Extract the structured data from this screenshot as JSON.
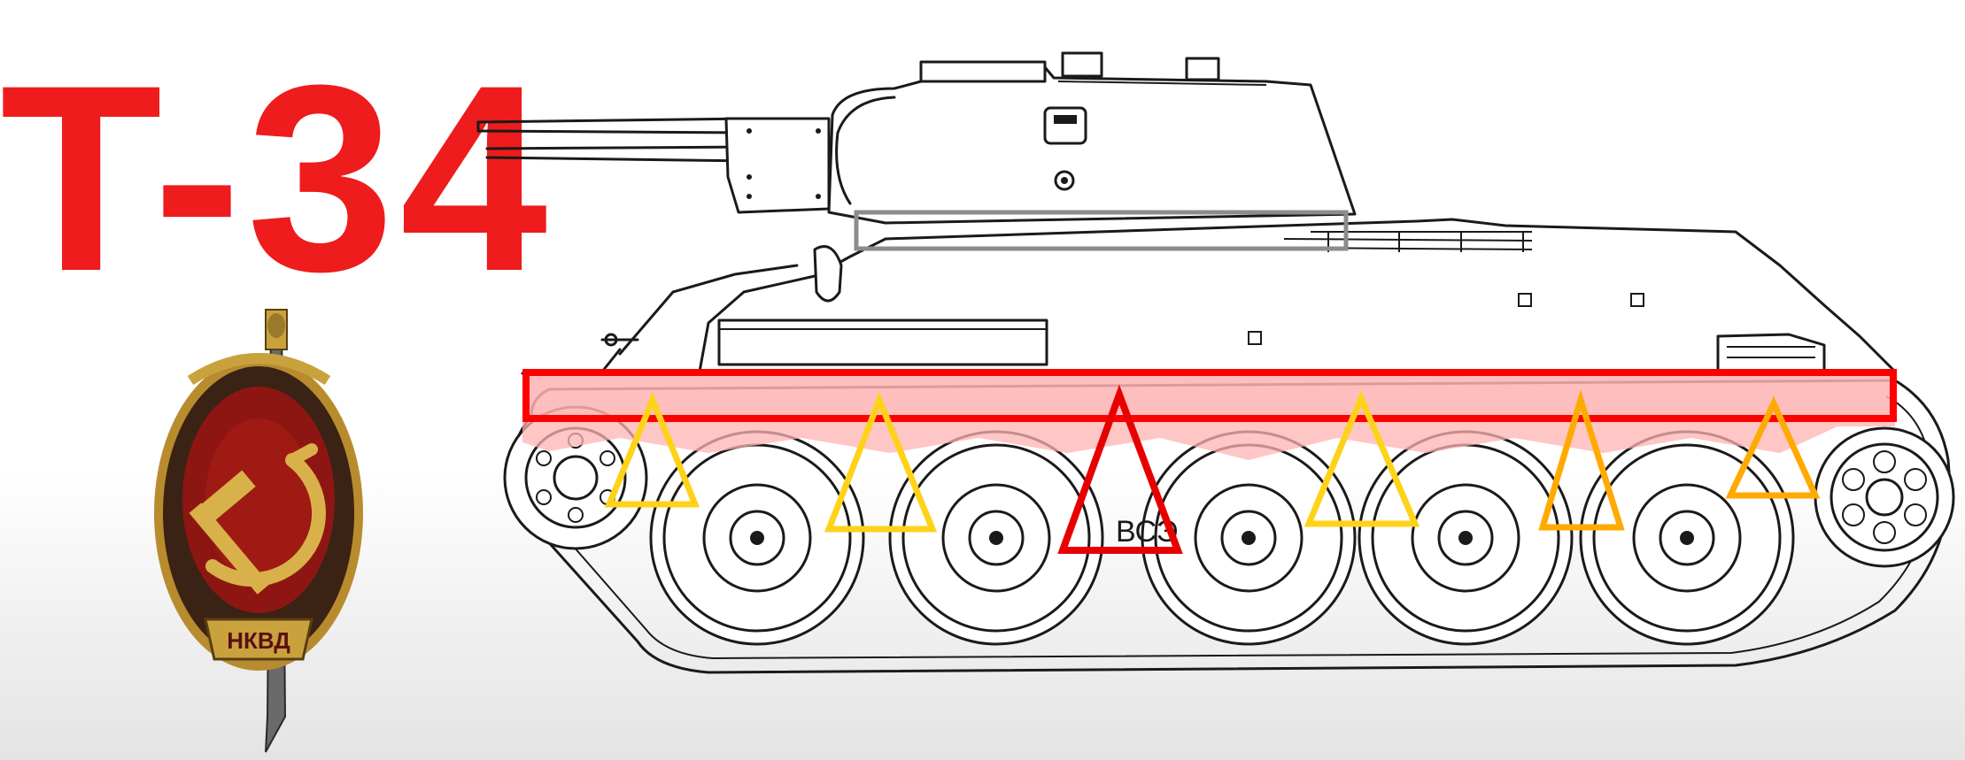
{
  "title": {
    "text": "T-34",
    "color": "#ee1c1c"
  },
  "badge": {
    "inscription": "НКВД",
    "colors": {
      "gold": "#c9a23e",
      "dark": "#3a2314",
      "red": "#8e1612"
    }
  },
  "tank": {
    "hull_marking": "ВСЭ"
  },
  "annotations": {
    "highlight_bar_color": "#ff0000",
    "highlight_fill_color": "#ffb3b3",
    "turret_ring_box_color": "#8c8c8c",
    "support_triangle_colors": {
      "yellow": "#ffd21a",
      "orange": "#ffaa00",
      "red": "#e80000"
    }
  }
}
